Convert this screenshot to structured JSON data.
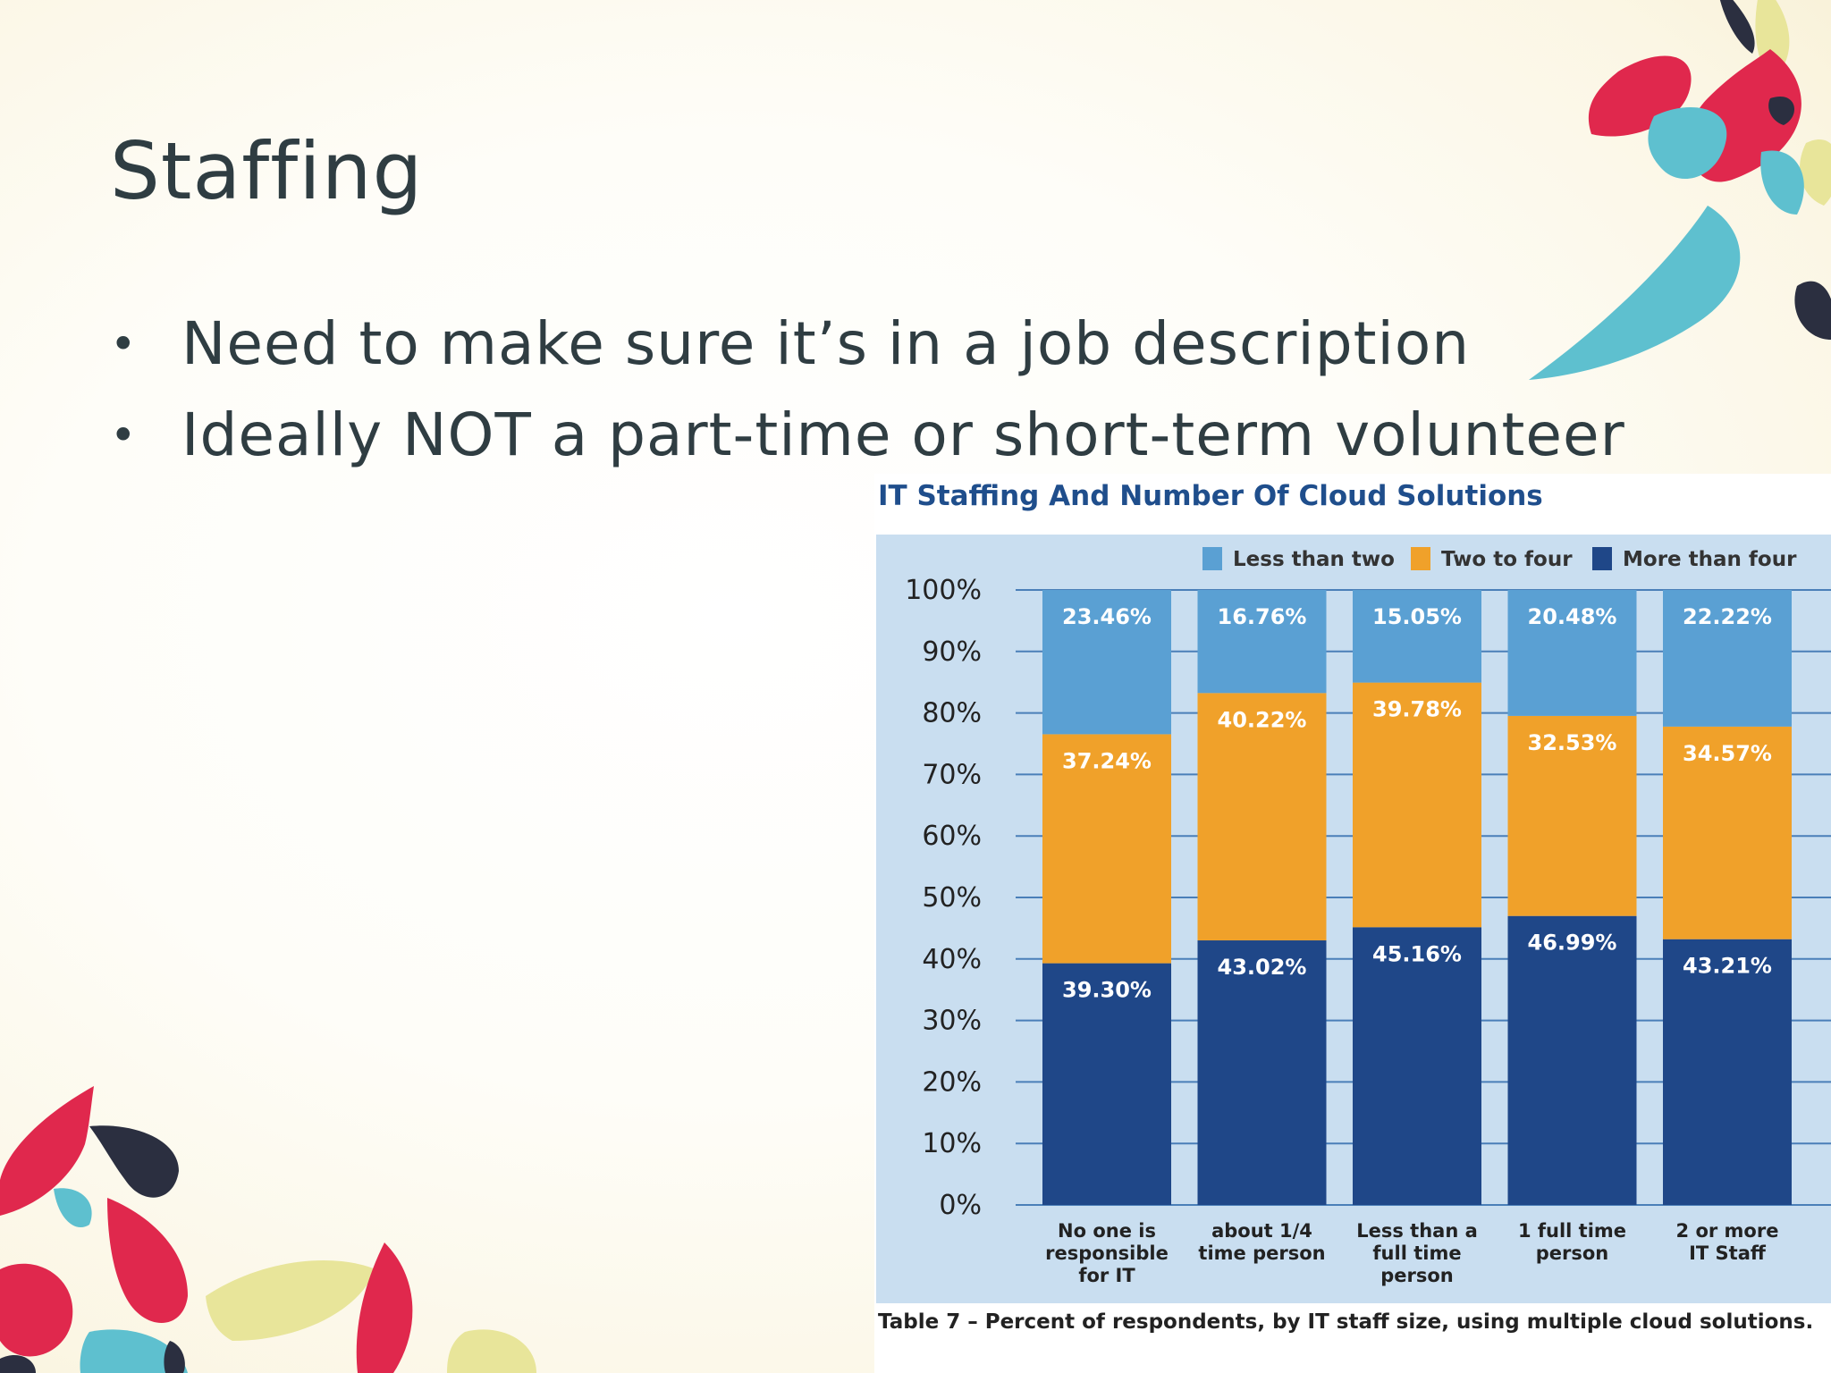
{
  "slide": {
    "title": "Staffing",
    "bullets": [
      "Need to make sure it’s in a job description",
      "Ideally NOT a part-time or short-term volunteer"
    ]
  },
  "colors": {
    "title_text": "#2f3d42",
    "chart_title": "#1f4e8c",
    "less_than_two": "#5aa0d3",
    "two_to_four": "#f0a12a",
    "more_than_four": "#1f4788",
    "plot_background": "#c9def0",
    "deco_red": "#e0284d",
    "deco_teal": "#5ec0cf",
    "deco_yellow": "#e8e59a",
    "deco_navy": "#2b2f40"
  },
  "chart_data": {
    "type": "bar",
    "stacked": true,
    "title": "IT Staffing And Number Of Cloud Solutions",
    "caption": "Table 7 – Percent of respondents, by IT staff size, using multiple cloud solutions.",
    "categories": [
      [
        "No one is",
        "responsible",
        "for IT"
      ],
      [
        "about 1/4",
        "time person"
      ],
      [
        "Less than a",
        "full time",
        "person"
      ],
      [
        "1 full time",
        "person"
      ],
      [
        "2 or more",
        "IT Staff"
      ]
    ],
    "series": [
      {
        "name": "More than four",
        "color": "#1f4788",
        "values": [
          39.3,
          43.02,
          45.16,
          46.99,
          43.21
        ],
        "labels": [
          "39.30%",
          "43.02%",
          "45.16%",
          "46.99%",
          "43.21%"
        ]
      },
      {
        "name": "Two to four",
        "color": "#f0a12a",
        "values": [
          37.24,
          40.22,
          39.78,
          32.53,
          34.57
        ],
        "labels": [
          "37.24%",
          "40.22%",
          "39.78%",
          "32.53%",
          "34.57%"
        ]
      },
      {
        "name": "Less than two",
        "color": "#5aa0d3",
        "values": [
          23.46,
          16.76,
          15.05,
          20.48,
          22.22
        ],
        "labels": [
          "23.46%",
          "16.76%",
          "15.05%",
          "20.48%",
          "22.22%"
        ]
      }
    ],
    "legend_order": [
      "Less than two",
      "Two to four",
      "More than four"
    ],
    "legend_position": "top-right",
    "ylim": [
      0,
      100
    ],
    "yticks": [
      "0%",
      "10%",
      "20%",
      "30%",
      "40%",
      "50%",
      "60%",
      "70%",
      "80%",
      "90%",
      "100%"
    ],
    "grid": true
  }
}
